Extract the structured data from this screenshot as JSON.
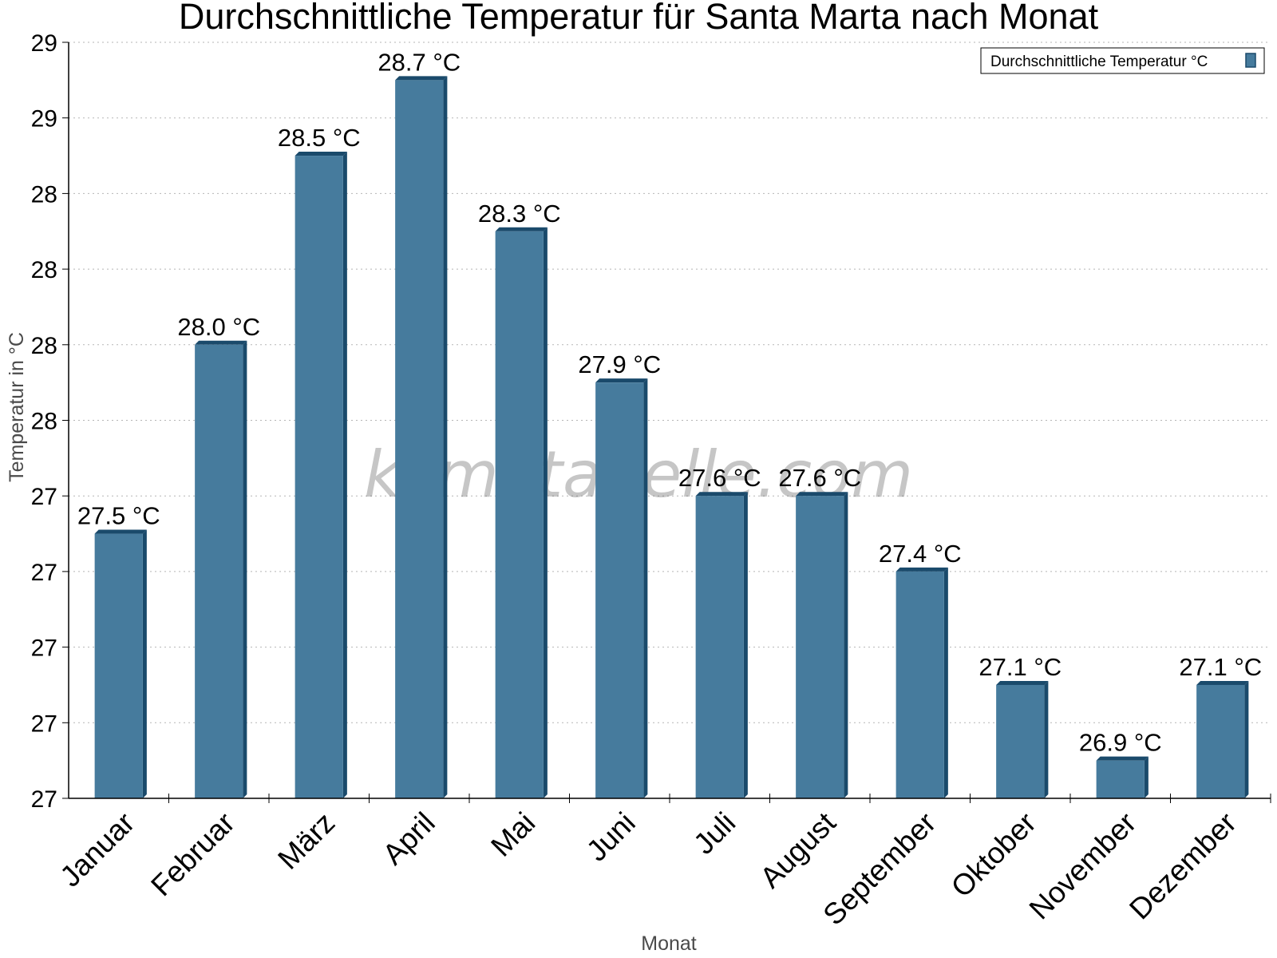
{
  "chart_data": {
    "type": "bar",
    "title": "Durchschnittliche Temperatur für Santa Marta nach Monat",
    "xlabel": "Monat",
    "ylabel": "Temperatur in °C",
    "categories": [
      "Januar",
      "Februar",
      "März",
      "April",
      "Mai",
      "Juni",
      "Juli",
      "August",
      "September",
      "Oktober",
      "November",
      "Dezember"
    ],
    "series": [
      {
        "name": "Durchschnittliche Temperatur °C",
        "values": [
          27.5,
          28.0,
          28.5,
          28.7,
          28.3,
          27.9,
          27.6,
          27.6,
          27.4,
          27.1,
          26.9,
          27.1
        ],
        "labels": [
          "27.5 °C",
          "28.0 °C",
          "28.5 °C",
          "28.7 °C",
          "28.3 °C",
          "27.9 °C",
          "27.6 °C",
          "27.6 °C",
          "27.4 °C",
          "27.1 °C",
          "26.9 °C",
          "27.1 °C"
        ]
      }
    ],
    "ylim": [
      26.8,
      28.8
    ],
    "yticks": [
      26.8,
      27.0,
      27.2,
      27.4,
      27.6,
      27.8,
      28.0,
      28.2,
      28.4,
      28.6,
      28.8
    ],
    "ytick_labels": [
      "27",
      "27",
      "27",
      "27",
      "27",
      "28",
      "28",
      "28",
      "28",
      "29",
      "29"
    ],
    "grid": true,
    "legend_position": "top-right",
    "bar_color": "#467b9d",
    "bar_edge_color": "#1a4a6b",
    "watermark": "klimatabelle.com"
  }
}
